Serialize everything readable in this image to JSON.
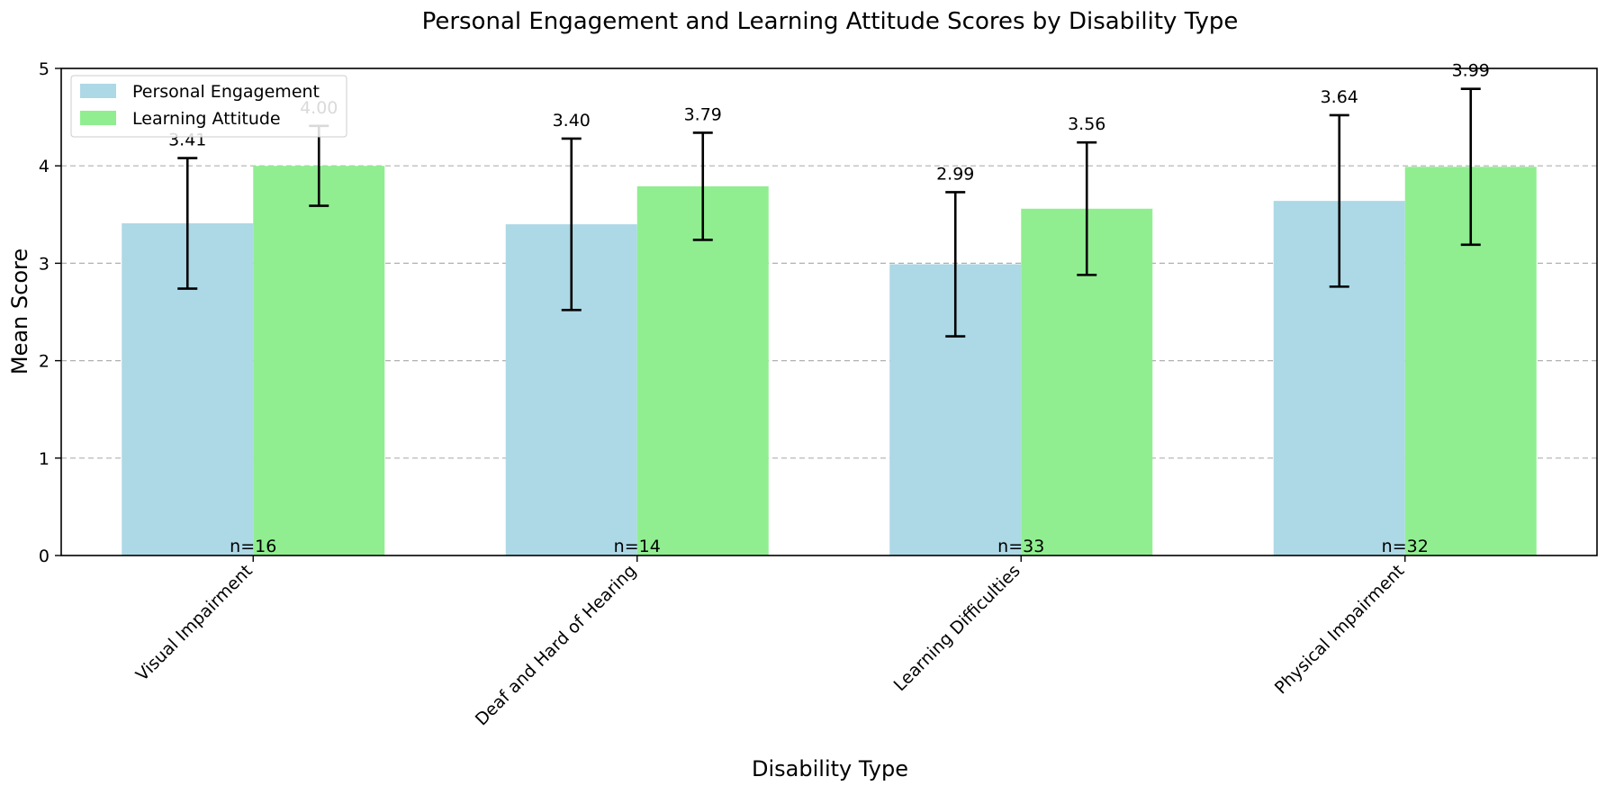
{
  "chart_data": {
    "type": "bar",
    "title": "Personal Engagement and Learning Attitude Scores by Disability Type",
    "xlabel": "Disability Type",
    "ylabel": "Mean Score",
    "ylim": [
      0,
      5
    ],
    "yticks": [
      "0",
      "1",
      "2",
      "3",
      "4",
      "5"
    ],
    "grid": "horizontal-dashed",
    "legend_position": "top-left",
    "categories": [
      "Visual Impairment",
      "Deaf and Hard of Hearing",
      "Learning Difficulties",
      "Physical Impairment"
    ],
    "sample_sizes": [
      "n=16",
      "n=14",
      "n=33",
      "n=32"
    ],
    "series": [
      {
        "name": "Personal Engagement",
        "color": "#add8e6",
        "values": [
          3.41,
          3.4,
          2.99,
          3.64
        ],
        "errors": [
          0.67,
          0.88,
          0.74,
          0.88
        ],
        "labels": [
          "3.41",
          "3.40",
          "2.99",
          "3.64"
        ]
      },
      {
        "name": "Learning Attitude",
        "color": "#90ee90",
        "values": [
          4.0,
          3.79,
          3.56,
          3.99
        ],
        "errors": [
          0.41,
          0.55,
          0.68,
          0.8
        ],
        "labels": [
          "4.00",
          "3.79",
          "3.56",
          "3.99"
        ]
      }
    ]
  }
}
